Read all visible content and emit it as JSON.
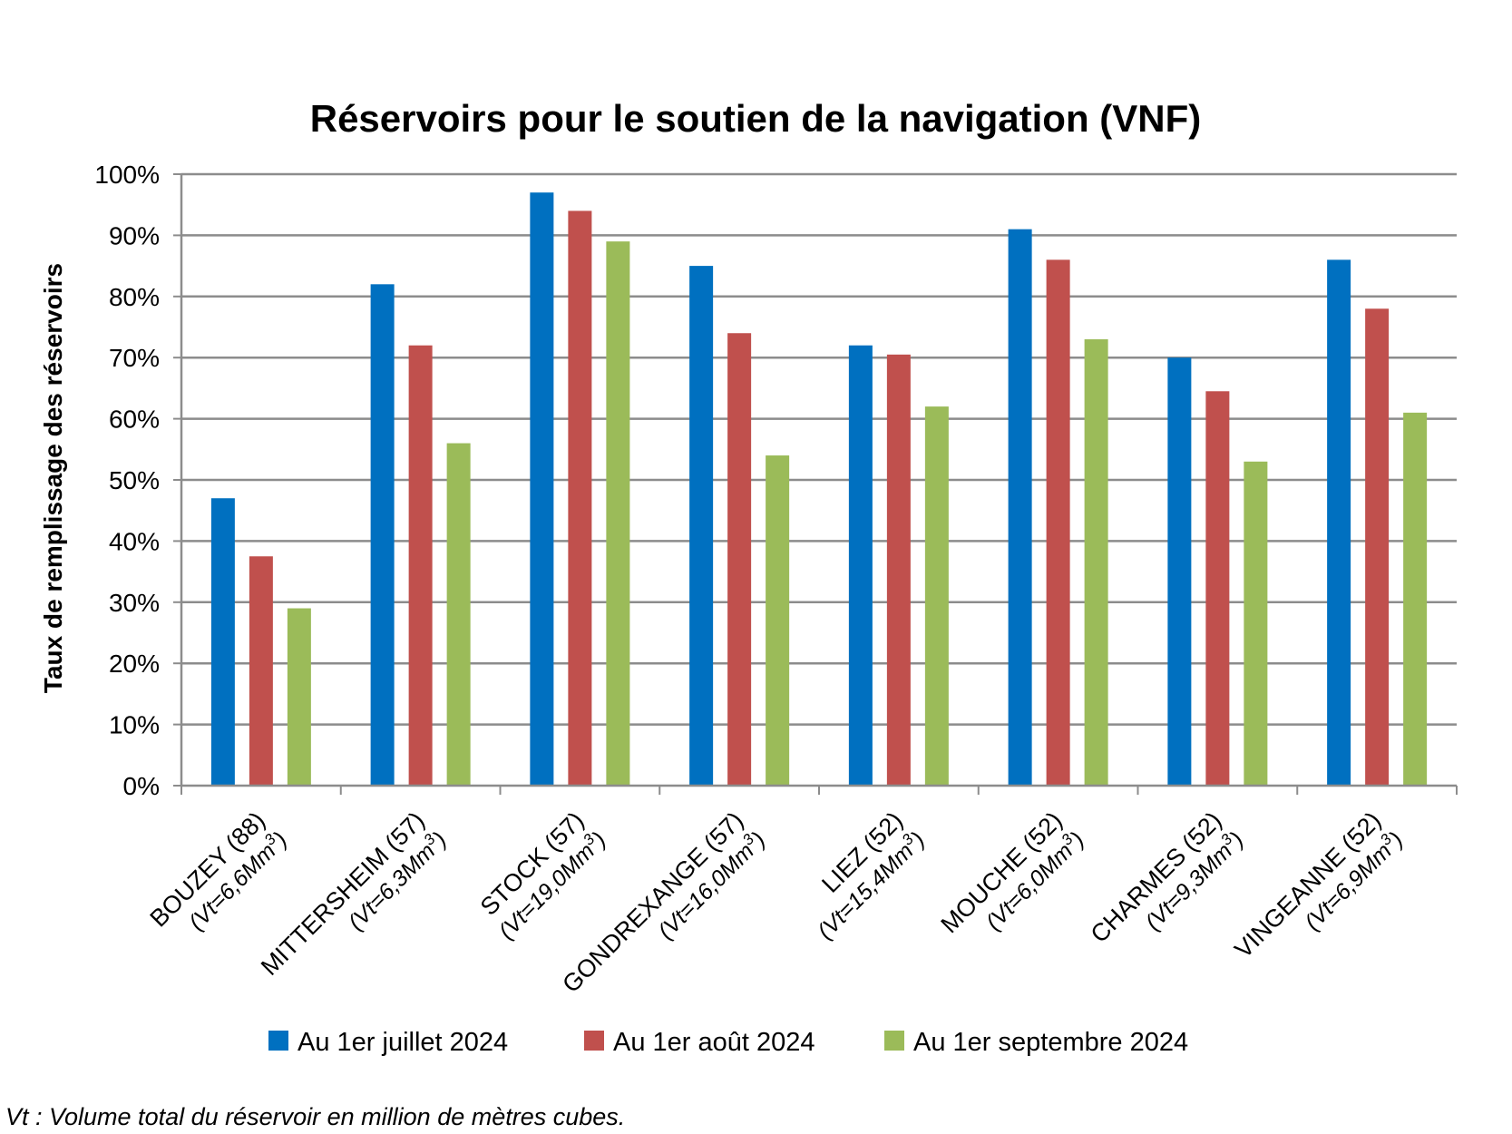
{
  "chart_data": {
    "type": "bar",
    "title": "Réservoirs pour le soutien de la navigation (VNF)",
    "ylabel": "Taux de remplissage des réservoirs",
    "xlabel": "",
    "ylim": [
      0,
      100
    ],
    "y_ticks": [
      "0%",
      "10%",
      "20%",
      "30%",
      "40%",
      "50%",
      "60%",
      "70%",
      "80%",
      "90%",
      "100%"
    ],
    "grid": true,
    "legend_position": "bottom",
    "categories": [
      {
        "name": "BOUZEY (88)",
        "vt": "(Vt=6,6Mm",
        "vt_sup": "3",
        "vt_end": ")"
      },
      {
        "name": "MITTERSHEIM (57)",
        "vt": "(Vt=6,3Mm",
        "vt_sup": "3",
        "vt_end": ")"
      },
      {
        "name": "STOCK (57)",
        "vt": "(Vt=19,0Mm",
        "vt_sup": "3",
        "vt_end": ")"
      },
      {
        "name": "GONDREXANGE (57)",
        "vt": "(Vt=16,0Mm",
        "vt_sup": "3",
        "vt_end": ")"
      },
      {
        "name": "LIEZ (52)",
        "vt": "(Vt=15,4Mm",
        "vt_sup": "3",
        "vt_end": ")"
      },
      {
        "name": "MOUCHE (52)",
        "vt": "(Vt=6,0Mm",
        "vt_sup": "3",
        "vt_end": ")"
      },
      {
        "name": "CHARMES (52)",
        "vt": "(Vt=9,3Mm",
        "vt_sup": "3",
        "vt_end": ")"
      },
      {
        "name": "VINGEANNE (52)",
        "vt": "(Vt=6,9Mm",
        "vt_sup": "3",
        "vt_end": ")"
      }
    ],
    "series": [
      {
        "name": "Au 1er juillet 2024",
        "color": "#0070C0",
        "values": [
          47,
          82,
          97,
          85,
          72,
          91,
          70,
          86
        ]
      },
      {
        "name": "Au 1er août 2024",
        "color": "#C0504D",
        "values": [
          37.5,
          72,
          94,
          74,
          70.5,
          86,
          64.5,
          78
        ]
      },
      {
        "name": "Au 1er septembre 2024",
        "color": "#9BBB59",
        "values": [
          29,
          56,
          89,
          54,
          62,
          73,
          53,
          61
        ]
      }
    ],
    "footnote": "Vt : Volume total du réservoir en million de mètres cubes."
  }
}
